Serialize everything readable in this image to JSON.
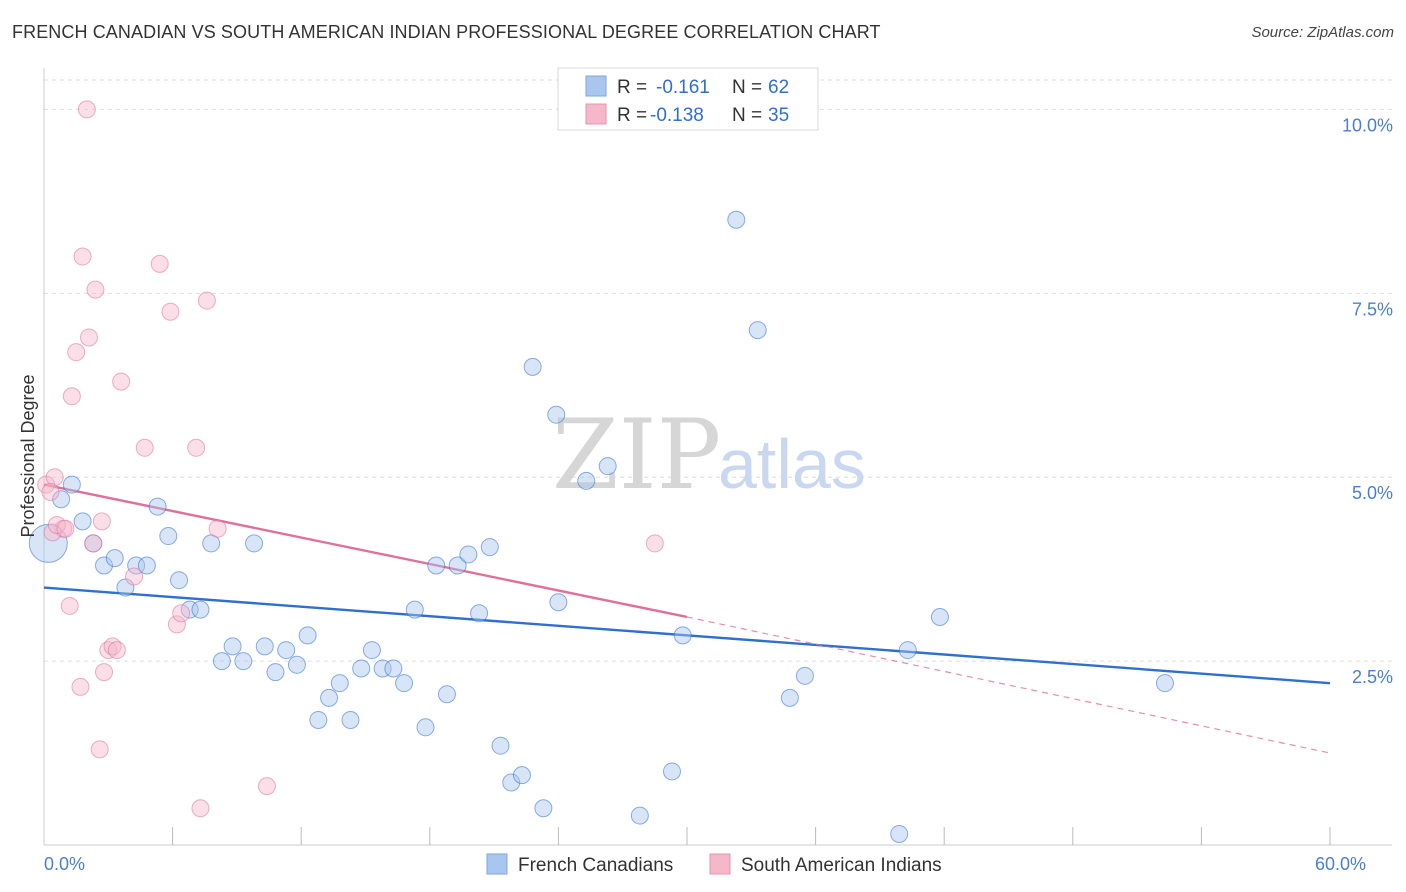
{
  "title": "FRENCH CANADIAN VS SOUTH AMERICAN INDIAN PROFESSIONAL DEGREE CORRELATION CHART",
  "source": "Source: ZipAtlas.com",
  "watermark": {
    "zip": "ZIP",
    "atlas": "atlas"
  },
  "colors": {
    "blue": "#2f6fd0",
    "blue_fill": "#a9c6ee",
    "pink": "#e0709a",
    "pink_fill": "#f5b8cb",
    "grid": "#dddddd",
    "tick": "#4a7fd0"
  },
  "chart_data": {
    "type": "scatter",
    "xlabel": "",
    "ylabel": "Professional Degree",
    "xlim": [
      0,
      60
    ],
    "ylim": [
      0,
      10.4
    ],
    "x_tick_labels": [
      {
        "value": 0,
        "label": "0.0%"
      },
      {
        "value": 60,
        "label": "60.0%"
      }
    ],
    "y_tick_labels": [
      {
        "value": 2.5,
        "label": "2.5%"
      },
      {
        "value": 5.0,
        "label": "5.0%"
      },
      {
        "value": 7.5,
        "label": "7.5%"
      },
      {
        "value": 10.0,
        "label": "10.0%"
      }
    ],
    "legend": {
      "stats": [
        {
          "r_label": "R =",
          "r_value": "-0.161",
          "n_label": "N =",
          "n_value": "62"
        },
        {
          "r_label": "R =",
          "r_value": "-0.138",
          "n_label": "N =",
          "n_value": "35"
        }
      ],
      "bottom": [
        "French Canadians",
        "South American Indians"
      ]
    },
    "series": [
      {
        "name": "French Canadians",
        "color": "blue",
        "trend": {
          "x0": 0,
          "y0": 3.5,
          "x1": 60,
          "y1": 2.2
        },
        "points": [
          [
            0.2,
            4.1
          ],
          [
            0.8,
            4.7
          ],
          [
            1.3,
            4.9
          ],
          [
            1.8,
            4.4
          ],
          [
            2.3,
            4.1
          ],
          [
            2.8,
            3.8
          ],
          [
            3.3,
            3.9
          ],
          [
            3.8,
            3.5
          ],
          [
            4.3,
            3.8
          ],
          [
            4.8,
            3.8
          ],
          [
            5.3,
            4.6
          ],
          [
            5.8,
            4.2
          ],
          [
            6.3,
            3.6
          ],
          [
            6.8,
            3.2
          ],
          [
            7.3,
            3.2
          ],
          [
            7.8,
            4.1
          ],
          [
            8.3,
            2.5
          ],
          [
            8.8,
            2.7
          ],
          [
            9.3,
            2.5
          ],
          [
            9.8,
            4.1
          ],
          [
            10.3,
            2.7
          ],
          [
            10.8,
            2.35
          ],
          [
            11.3,
            2.65
          ],
          [
            11.8,
            2.45
          ],
          [
            12.3,
            2.85
          ],
          [
            12.8,
            1.7
          ],
          [
            13.3,
            2.0
          ],
          [
            13.8,
            2.2
          ],
          [
            14.3,
            1.7
          ],
          [
            14.8,
            2.4
          ],
          [
            15.3,
            2.65
          ],
          [
            15.8,
            2.4
          ],
          [
            16.3,
            2.4
          ],
          [
            16.8,
            2.2
          ],
          [
            17.3,
            3.2
          ],
          [
            17.8,
            1.6
          ],
          [
            18.3,
            3.8
          ],
          [
            18.8,
            2.05
          ],
          [
            19.3,
            3.8
          ],
          [
            19.8,
            3.95
          ],
          [
            20.3,
            3.15
          ],
          [
            20.8,
            4.05
          ],
          [
            21.3,
            1.35
          ],
          [
            21.8,
            0.85
          ],
          [
            22.3,
            0.95
          ],
          [
            22.8,
            6.5
          ],
          [
            23.3,
            0.5
          ],
          [
            23.9,
            5.85
          ],
          [
            24.0,
            3.3
          ],
          [
            25.3,
            4.95
          ],
          [
            26.3,
            5.15
          ],
          [
            27.8,
            0.4
          ],
          [
            29.3,
            1.0
          ],
          [
            29.8,
            2.85
          ],
          [
            32.3,
            8.5
          ],
          [
            33.3,
            7.0
          ],
          [
            34.8,
            2.0
          ],
          [
            35.5,
            2.3
          ],
          [
            40.3,
            2.65
          ],
          [
            41.8,
            3.1
          ],
          [
            39.9,
            0.15
          ],
          [
            52.3,
            2.2
          ]
        ]
      },
      {
        "name": "South American Indians",
        "color": "pink",
        "trend": {
          "x0": 0,
          "y0": 4.9,
          "x1": 30,
          "y1": 3.1
        },
        "trend_extension": {
          "x0": 30,
          "y0": 3.1,
          "x1": 60,
          "y1": 1.25
        },
        "points": [
          [
            0.1,
            4.9
          ],
          [
            0.5,
            5.0
          ],
          [
            0.9,
            4.3
          ],
          [
            1.2,
            3.25
          ],
          [
            1.3,
            6.1
          ],
          [
            1.5,
            6.7
          ],
          [
            1.7,
            2.15
          ],
          [
            1.8,
            8.0
          ],
          [
            2.0,
            10.0
          ],
          [
            2.1,
            6.9
          ],
          [
            2.3,
            4.1
          ],
          [
            2.4,
            7.55
          ],
          [
            2.6,
            1.3
          ],
          [
            2.7,
            4.4
          ],
          [
            2.8,
            2.35
          ],
          [
            3.0,
            2.65
          ],
          [
            3.2,
            2.7
          ],
          [
            3.4,
            2.65
          ],
          [
            3.6,
            6.3
          ],
          [
            4.2,
            3.65
          ],
          [
            4.7,
            5.4
          ],
          [
            5.4,
            7.9
          ],
          [
            5.9,
            7.25
          ],
          [
            6.2,
            3.0
          ],
          [
            6.4,
            3.15
          ],
          [
            7.1,
            5.4
          ],
          [
            7.3,
            0.5
          ],
          [
            7.6,
            7.4
          ],
          [
            8.1,
            4.3
          ],
          [
            10.4,
            0.8
          ],
          [
            28.5,
            4.1
          ],
          [
            0.4,
            4.25
          ],
          [
            0.6,
            4.35
          ],
          [
            1.0,
            4.3
          ],
          [
            0.3,
            4.8
          ]
        ]
      }
    ]
  }
}
